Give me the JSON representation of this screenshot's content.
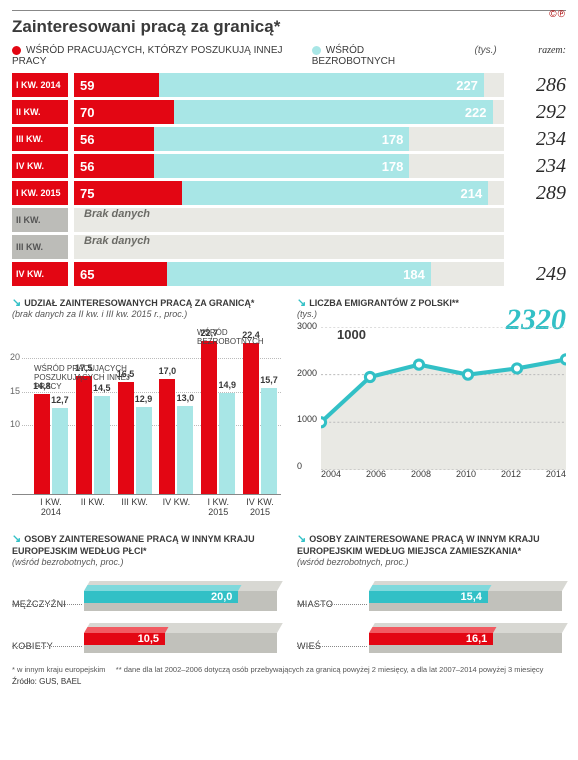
{
  "colors": {
    "red": "#e30613",
    "cyan_bar": "#a8e6e6",
    "cyan_line": "#32c0c6",
    "gray_track": "#e9e9e4",
    "gray_q": "#bcbcb8"
  },
  "title": "Zainteresowani pracą za granicą*",
  "cc": "©℗",
  "legend": {
    "red": "WŚRÓD PRACUJĄCYCH, KTÓRZY POSZUKUJĄ INNEJ PRACY",
    "cyan": "WŚRÓD BEZROBOTNYCH",
    "tys": "(tys.)",
    "razem": "razem:"
  },
  "stacked": {
    "max": 300,
    "nodata_label": "Brak danych",
    "rows": [
      {
        "q": "I KW. 2014",
        "red": 59,
        "cyan": 227,
        "sum": 286
      },
      {
        "q": "II KW.",
        "red": 70,
        "cyan": 222,
        "sum": 292
      },
      {
        "q": "III KW.",
        "red": 56,
        "cyan": 178,
        "sum": 234
      },
      {
        "q": "IV KW.",
        "red": 56,
        "cyan": 178,
        "sum": 234
      },
      {
        "q": "I KW. 2015",
        "red": 75,
        "cyan": 214,
        "sum": 289
      },
      {
        "q": "II KW.",
        "nodata": true
      },
      {
        "q": "III KW.",
        "nodata": true
      },
      {
        "q": "IV KW.",
        "red": 65,
        "cyan": 184,
        "sum": 249
      }
    ]
  },
  "grouped": {
    "title": "UDZIAŁ ZAINTERESOWANYCH PRACĄ ZA GRANICĄ*",
    "sub": "(brak danych za II kw. i III kw. 2015 r., proc.)",
    "note_left": "WŚRÓD PRACUJĄCYCH POSZUKUJĄCYCH INNEJ PRACY",
    "note_right": "WŚRÓD BEZROBOTNYCH",
    "ymax": 25,
    "yticks": [
      10,
      15,
      20
    ],
    "categories": [
      "I KW. 2014",
      "II KW.",
      "III KW.",
      "IV KW.",
      "I KW. 2015",
      "IV KW. 2015"
    ],
    "series": [
      {
        "color": "#e30613",
        "values": [
          14.8,
          17.5,
          16.5,
          17.0,
          22.7,
          22.4
        ]
      },
      {
        "color": "#a8e6e6",
        "values": [
          12.7,
          14.5,
          12.9,
          13.0,
          14.9,
          15.7
        ]
      }
    ]
  },
  "line": {
    "title": "LICZBA EMIGRANTÓW Z POLSKI**",
    "sub": "(tys.)",
    "highlight": "2320",
    "thousand_label": "1000",
    "ymax": 3000,
    "yticks": [
      0,
      1000,
      2000,
      3000
    ],
    "years": [
      2004,
      2006,
      2008,
      2010,
      2012,
      2014
    ],
    "values": [
      1000,
      1950,
      2210,
      2000,
      2130,
      2320
    ],
    "color": "#32c0c6",
    "area_color": "#e9e9e4"
  },
  "bottom": {
    "left": {
      "title": "OSOBY ZAINTERESOWANE PRACĄ W INNYM KRAJU EUROPEJSKIM WEDŁUG PŁCI*",
      "sub": "(wśród bezrobotnych, proc.)",
      "rows": [
        {
          "label": "MĘŻCZYŹNI",
          "value": 20.0,
          "color": "#32c0c6",
          "top_color": "#7fd9dc"
        },
        {
          "label": "KOBIETY",
          "value": 10.5,
          "color": "#e30613",
          "top_color": "#f15b62"
        }
      ],
      "max": 25
    },
    "right": {
      "title": "OSOBY ZAINTERESOWANE PRACĄ W INNYM KRAJU EUROPEJSKIM WEDŁUG MIEJSCA ZAMIESZKANIA*",
      "sub": "(wśród bezrobotnych, proc.)",
      "rows": [
        {
          "label": "MIASTO",
          "value": 15.4,
          "color": "#32c0c6",
          "top_color": "#7fd9dc"
        },
        {
          "label": "WIEŚ",
          "value": 16.1,
          "color": "#e30613",
          "top_color": "#f15b62"
        }
      ],
      "max": 25
    }
  },
  "footnotes": {
    "a": "* w innym kraju europejskim",
    "b": "** dane dla lat 2002–2006 dotyczą osób przebywających za granicą powyżej 2 miesięcy, a dla lat 2007–2014 powyżej 3 miesięcy",
    "source": "Źródło: GUS, BAEL"
  }
}
